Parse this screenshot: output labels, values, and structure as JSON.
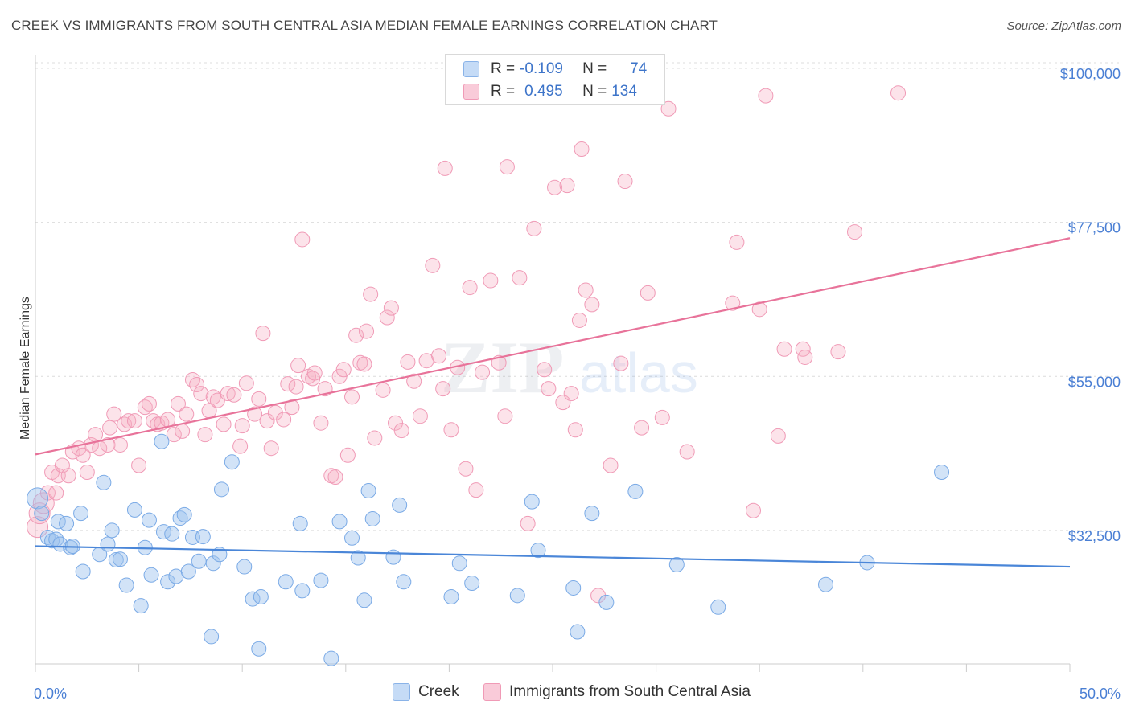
{
  "header": {
    "title": "CREEK VS IMMIGRANTS FROM SOUTH CENTRAL ASIA MEDIAN FEMALE EARNINGS CORRELATION CHART",
    "source": "Source: ZipAtlas.com"
  },
  "watermark": {
    "zip": "ZIP",
    "atlas": "atlas"
  },
  "legend": {
    "rows": [
      {
        "r_label": "R =",
        "r_value": "-0.109",
        "n_label": "N =",
        "n_value": "74",
        "color": "#9cc0ee"
      },
      {
        "r_label": "R =",
        "r_value": "0.495",
        "n_label": "N =",
        "n_value": "134",
        "color": "#f5aec4"
      }
    ]
  },
  "bottom_legend": [
    {
      "label": "Creek",
      "color": "#9cc0ee"
    },
    {
      "label": "Immigrants from South Central Asia",
      "color": "#f5aec4"
    }
  ],
  "chart_data": {
    "type": "scatter",
    "title": "CREEK VS IMMIGRANTS FROM SOUTH CENTRAL ASIA MEDIAN FEMALE EARNINGS CORRELATION CHART",
    "ylabel": "Median Female Earnings",
    "xlabel": "",
    "x_tick_labels": [
      "0.0%",
      "50.0%"
    ],
    "y_ticks": [
      32500,
      55000,
      77500,
      100000
    ],
    "y_tick_labels": [
      "$32,500",
      "$55,000",
      "$77,500",
      "$100,000"
    ],
    "xlim": [
      0,
      50
    ],
    "ylim": [
      13000,
      102000
    ],
    "grid": true,
    "legend_position": "top-center",
    "colors": {
      "creek": "#4a86d8",
      "immigrants": "#e8739a"
    },
    "series": [
      {
        "name": "Creek",
        "color": "#9cc0ee",
        "trend": {
          "x": [
            0,
            50
          ],
          "y": [
            30200,
            27200
          ]
        },
        "points": [
          [
            0.1,
            37200
          ],
          [
            0.3,
            35000
          ],
          [
            0.6,
            31500
          ],
          [
            0.8,
            31000
          ],
          [
            1.0,
            31200
          ],
          [
            1.1,
            33800
          ],
          [
            1.2,
            30500
          ],
          [
            1.5,
            33500
          ],
          [
            1.7,
            30000
          ],
          [
            1.8,
            30200
          ],
          [
            2.2,
            35000
          ],
          [
            2.3,
            26500
          ],
          [
            3.1,
            29000
          ],
          [
            3.3,
            39500
          ],
          [
            3.5,
            30500
          ],
          [
            3.7,
            32500
          ],
          [
            3.9,
            28200
          ],
          [
            4.1,
            28300
          ],
          [
            4.4,
            24500
          ],
          [
            4.8,
            35500
          ],
          [
            5.1,
            21500
          ],
          [
            5.3,
            30000
          ],
          [
            5.5,
            34000
          ],
          [
            5.6,
            26000
          ],
          [
            6.1,
            45500
          ],
          [
            6.2,
            32300
          ],
          [
            6.4,
            25000
          ],
          [
            6.6,
            32000
          ],
          [
            6.8,
            25800
          ],
          [
            7.0,
            34300
          ],
          [
            7.2,
            34800
          ],
          [
            7.4,
            26500
          ],
          [
            7.6,
            31500
          ],
          [
            7.9,
            28000
          ],
          [
            8.1,
            31600
          ],
          [
            8.5,
            17000
          ],
          [
            8.6,
            27700
          ],
          [
            8.9,
            29000
          ],
          [
            9.0,
            38500
          ],
          [
            9.5,
            42500
          ],
          [
            10.1,
            27200
          ],
          [
            10.5,
            22500
          ],
          [
            10.8,
            15200
          ],
          [
            10.9,
            22800
          ],
          [
            12.1,
            25000
          ],
          [
            12.8,
            33500
          ],
          [
            12.9,
            23700
          ],
          [
            13.8,
            25200
          ],
          [
            14.3,
            13800
          ],
          [
            14.7,
            33800
          ],
          [
            15.3,
            31400
          ],
          [
            15.6,
            28500
          ],
          [
            15.9,
            22300
          ],
          [
            16.1,
            38300
          ],
          [
            16.3,
            34200
          ],
          [
            17.3,
            28600
          ],
          [
            17.6,
            36200
          ],
          [
            17.8,
            25000
          ],
          [
            20.1,
            22800
          ],
          [
            20.5,
            27700
          ],
          [
            21.1,
            24800
          ],
          [
            23.3,
            23000
          ],
          [
            24.0,
            36700
          ],
          [
            24.3,
            29600
          ],
          [
            26.0,
            24100
          ],
          [
            26.2,
            17700
          ],
          [
            26.9,
            35000
          ],
          [
            27.6,
            22000
          ],
          [
            29.0,
            38200
          ],
          [
            31.0,
            27500
          ],
          [
            33.0,
            21300
          ],
          [
            38.2,
            24600
          ],
          [
            40.2,
            27800
          ],
          [
            43.8,
            41000
          ]
        ]
      },
      {
        "name": "Immigrants from South Central Asia",
        "color": "#f5aec4",
        "trend": {
          "x": [
            0,
            50
          ],
          "y": [
            43600,
            75200
          ]
        },
        "points": [
          [
            0.1,
            33000
          ],
          [
            0.2,
            35000
          ],
          [
            0.4,
            36500
          ],
          [
            0.6,
            38000
          ],
          [
            0.8,
            41000
          ],
          [
            1.0,
            38000
          ],
          [
            1.1,
            40500
          ],
          [
            1.3,
            42000
          ],
          [
            1.6,
            40500
          ],
          [
            1.8,
            44000
          ],
          [
            2.1,
            44500
          ],
          [
            2.3,
            43500
          ],
          [
            2.5,
            41000
          ],
          [
            2.7,
            45000
          ],
          [
            2.9,
            46500
          ],
          [
            3.1,
            44500
          ],
          [
            3.5,
            45000
          ],
          [
            3.6,
            47500
          ],
          [
            3.8,
            49500
          ],
          [
            4.1,
            45000
          ],
          [
            4.3,
            48000
          ],
          [
            4.5,
            48500
          ],
          [
            4.8,
            48500
          ],
          [
            5.0,
            42000
          ],
          [
            5.3,
            50500
          ],
          [
            5.5,
            51000
          ],
          [
            5.7,
            48500
          ],
          [
            5.9,
            48000
          ],
          [
            6.1,
            48200
          ],
          [
            6.4,
            48700
          ],
          [
            6.7,
            46500
          ],
          [
            6.9,
            51000
          ],
          [
            7.1,
            47000
          ],
          [
            7.3,
            49500
          ],
          [
            7.6,
            54500
          ],
          [
            7.8,
            53800
          ],
          [
            8.0,
            52500
          ],
          [
            8.2,
            46500
          ],
          [
            8.4,
            50000
          ],
          [
            8.6,
            52000
          ],
          [
            8.8,
            51500
          ],
          [
            9.1,
            48000
          ],
          [
            9.3,
            52500
          ],
          [
            9.6,
            52300
          ],
          [
            9.9,
            44800
          ],
          [
            10.0,
            47800
          ],
          [
            10.2,
            54000
          ],
          [
            10.6,
            49500
          ],
          [
            10.8,
            51700
          ],
          [
            11.0,
            61300
          ],
          [
            11.2,
            48500
          ],
          [
            11.4,
            44500
          ],
          [
            11.6,
            49700
          ],
          [
            12.0,
            48700
          ],
          [
            12.2,
            53900
          ],
          [
            12.4,
            50500
          ],
          [
            12.6,
            53500
          ],
          [
            12.7,
            56600
          ],
          [
            12.9,
            75000
          ],
          [
            13.2,
            55000
          ],
          [
            13.4,
            54700
          ],
          [
            13.5,
            55500
          ],
          [
            13.8,
            48200
          ],
          [
            14.0,
            53200
          ],
          [
            14.3,
            40500
          ],
          [
            14.5,
            40300
          ],
          [
            14.7,
            55000
          ],
          [
            14.9,
            56000
          ],
          [
            15.1,
            43500
          ],
          [
            15.3,
            52000
          ],
          [
            15.5,
            61000
          ],
          [
            15.7,
            57000
          ],
          [
            15.9,
            56800
          ],
          [
            16.0,
            61600
          ],
          [
            16.2,
            67000
          ],
          [
            16.4,
            46000
          ],
          [
            16.8,
            53000
          ],
          [
            17.0,
            63600
          ],
          [
            17.2,
            65000
          ],
          [
            17.4,
            48200
          ],
          [
            17.7,
            47100
          ],
          [
            18.0,
            57100
          ],
          [
            18.3,
            54300
          ],
          [
            18.6,
            49200
          ],
          [
            18.9,
            57300
          ],
          [
            19.2,
            71200
          ],
          [
            19.5,
            58000
          ],
          [
            19.7,
            53200
          ],
          [
            19.8,
            85400
          ],
          [
            20.1,
            47200
          ],
          [
            20.4,
            56300
          ],
          [
            20.8,
            41500
          ],
          [
            21.0,
            68000
          ],
          [
            21.3,
            38400
          ],
          [
            21.6,
            55600
          ],
          [
            22.0,
            69000
          ],
          [
            22.4,
            57000
          ],
          [
            22.7,
            49200
          ],
          [
            22.8,
            85600
          ],
          [
            23.4,
            69400
          ],
          [
            23.8,
            33500
          ],
          [
            24.1,
            76600
          ],
          [
            24.6,
            56000
          ],
          [
            24.8,
            53200
          ],
          [
            25.1,
            82600
          ],
          [
            25.5,
            51200
          ],
          [
            25.7,
            82900
          ],
          [
            25.9,
            52500
          ],
          [
            26.1,
            47200
          ],
          [
            26.3,
            63200
          ],
          [
            26.4,
            88200
          ],
          [
            26.6,
            67600
          ],
          [
            26.9,
            65500
          ],
          [
            27.2,
            23000
          ],
          [
            27.8,
            42000
          ],
          [
            28.3,
            56900
          ],
          [
            28.5,
            83500
          ],
          [
            29.3,
            47500
          ],
          [
            29.6,
            67200
          ],
          [
            30.3,
            49000
          ],
          [
            30.6,
            94100
          ],
          [
            31.5,
            44000
          ],
          [
            33.7,
            65700
          ],
          [
            33.9,
            74600
          ],
          [
            34.7,
            35400
          ],
          [
            35.0,
            64800
          ],
          [
            35.3,
            96000
          ],
          [
            35.9,
            46300
          ],
          [
            36.2,
            59000
          ],
          [
            37.1,
            59000
          ],
          [
            37.2,
            57800
          ],
          [
            38.8,
            58600
          ],
          [
            39.6,
            76100
          ],
          [
            41.7,
            96400
          ]
        ]
      }
    ]
  }
}
